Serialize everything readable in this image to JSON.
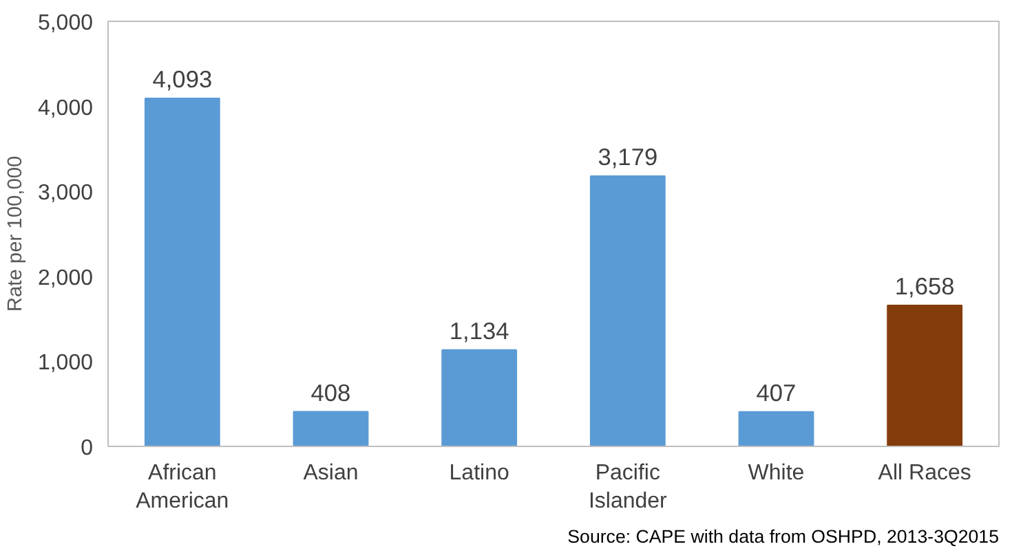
{
  "chart_data": {
    "type": "bar",
    "ylabel": "Rate per 100,000",
    "categories": [
      "African American",
      "Asian",
      "Latino",
      "Pacific Islander",
      "White",
      "All Races"
    ],
    "values": [
      4093,
      408,
      1134,
      3179,
      407,
      1658
    ],
    "colors": [
      "#5b9bd5",
      "#5b9bd5",
      "#5b9bd5",
      "#5b9bd5",
      "#5b9bd5",
      "#843c0c"
    ],
    "value_labels": [
      "4,093",
      "408",
      "1,134",
      "3,179",
      "407",
      "1,658"
    ],
    "ylim": [
      0,
      5000
    ],
    "yticks": [
      0,
      {
        "value": 1000,
        "label": "1,000"
      },
      {
        "value": 2000,
        "label": "2,000"
      },
      {
        "value": 3000,
        "label": "3,000"
      },
      {
        "value": 4000,
        "label": "4,000"
      },
      {
        "value": 5000,
        "label": "5,000"
      }
    ],
    "grid": false,
    "annotations": [
      "Source: CAPE with data from OSHPD, 2013-3Q2015"
    ]
  }
}
